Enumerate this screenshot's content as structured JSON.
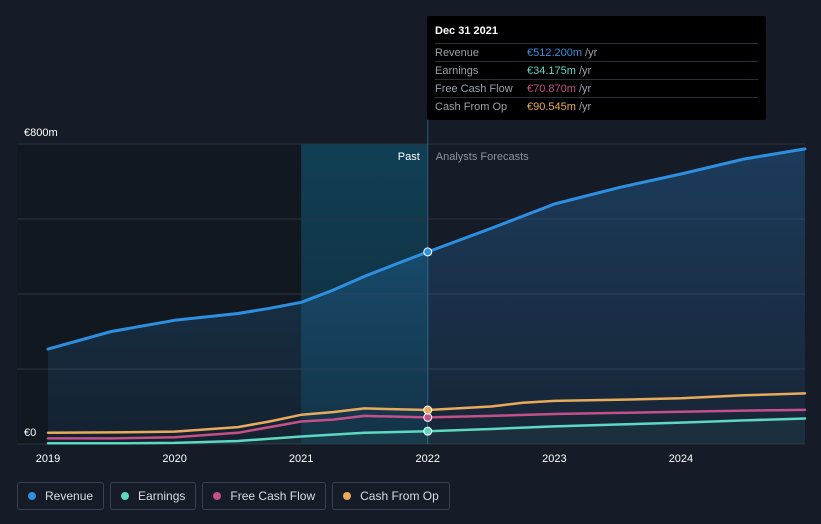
{
  "chart_data": {
    "type": "line",
    "x_ticks": [
      "2019",
      "2020",
      "2021",
      "2022",
      "2023",
      "2024"
    ],
    "y_ticks": [
      {
        "value": 800,
        "label": "€800m"
      },
      {
        "value": 0,
        "label": "€0"
      }
    ],
    "ylim": [
      0,
      800
    ],
    "xlim": [
      2019.0,
      2024.98
    ],
    "past_label": "Past",
    "forecast_label": "Analysts Forecasts",
    "past_start": 2021.0,
    "divider_x": 2022.0,
    "series": [
      {
        "name": "Revenue",
        "color": "#2d8fe0",
        "fill": true,
        "points": [
          [
            2019.0,
            253
          ],
          [
            2019.5,
            300
          ],
          [
            2020.0,
            330
          ],
          [
            2020.5,
            348
          ],
          [
            2020.75,
            362
          ],
          [
            2021.0,
            378
          ],
          [
            2021.25,
            410
          ],
          [
            2021.5,
            447
          ],
          [
            2021.75,
            480
          ],
          [
            2022.0,
            512.2
          ],
          [
            2022.5,
            575
          ],
          [
            2023.0,
            640
          ],
          [
            2023.5,
            683
          ],
          [
            2024.0,
            720
          ],
          [
            2024.5,
            760
          ],
          [
            2024.98,
            787
          ]
        ]
      },
      {
        "name": "Earnings",
        "color": "#5ed8c2",
        "fill": false,
        "points": [
          [
            2019.0,
            2
          ],
          [
            2019.5,
            2
          ],
          [
            2020.0,
            3
          ],
          [
            2020.5,
            8
          ],
          [
            2021.0,
            20
          ],
          [
            2021.5,
            30
          ],
          [
            2022.0,
            34.175
          ],
          [
            2022.5,
            40
          ],
          [
            2023.0,
            47
          ],
          [
            2023.5,
            52
          ],
          [
            2024.0,
            57
          ],
          [
            2024.5,
            63
          ],
          [
            2024.98,
            68
          ]
        ]
      },
      {
        "name": "Free Cash Flow",
        "color": "#c45089",
        "fill": false,
        "points": [
          [
            2019.0,
            15
          ],
          [
            2019.5,
            15
          ],
          [
            2020.0,
            18
          ],
          [
            2020.5,
            30
          ],
          [
            2021.0,
            60
          ],
          [
            2021.25,
            65
          ],
          [
            2021.5,
            75
          ],
          [
            2022.0,
            70.87
          ],
          [
            2022.5,
            75
          ],
          [
            2023.0,
            80
          ],
          [
            2023.5,
            83
          ],
          [
            2024.0,
            86
          ],
          [
            2024.5,
            89
          ],
          [
            2024.98,
            91
          ]
        ]
      },
      {
        "name": "Cash From Op",
        "color": "#e8ab5c",
        "fill": false,
        "points": [
          [
            2019.0,
            30
          ],
          [
            2019.5,
            31
          ],
          [
            2020.0,
            33
          ],
          [
            2020.5,
            45
          ],
          [
            2020.75,
            60
          ],
          [
            2021.0,
            78
          ],
          [
            2021.25,
            85
          ],
          [
            2021.5,
            95
          ],
          [
            2022.0,
            90.545
          ],
          [
            2022.5,
            100
          ],
          [
            2022.75,
            110
          ],
          [
            2023.0,
            115
          ],
          [
            2023.5,
            118
          ],
          [
            2024.0,
            122
          ],
          [
            2024.5,
            130
          ],
          [
            2024.98,
            135
          ]
        ]
      }
    ]
  },
  "tooltip": {
    "date": "Dec 31 2021",
    "unit": "/yr",
    "rows": [
      {
        "label": "Revenue",
        "value": "€512.200m",
        "color": "#2d8fe0"
      },
      {
        "label": "Earnings",
        "value": "€34.175m",
        "color": "#5ed8c2"
      },
      {
        "label": "Free Cash Flow",
        "value": "€70.870m",
        "color": "#c45089"
      },
      {
        "label": "Cash From Op",
        "value": "€90.545m",
        "color": "#e8ab5c"
      }
    ]
  },
  "legend": [
    {
      "label": "Revenue",
      "color": "#2d8fe0"
    },
    {
      "label": "Earnings",
      "color": "#5ed8c2"
    },
    {
      "label": "Free Cash Flow",
      "color": "#c45089"
    },
    {
      "label": "Cash From Op",
      "color": "#e8ab5c"
    }
  ]
}
